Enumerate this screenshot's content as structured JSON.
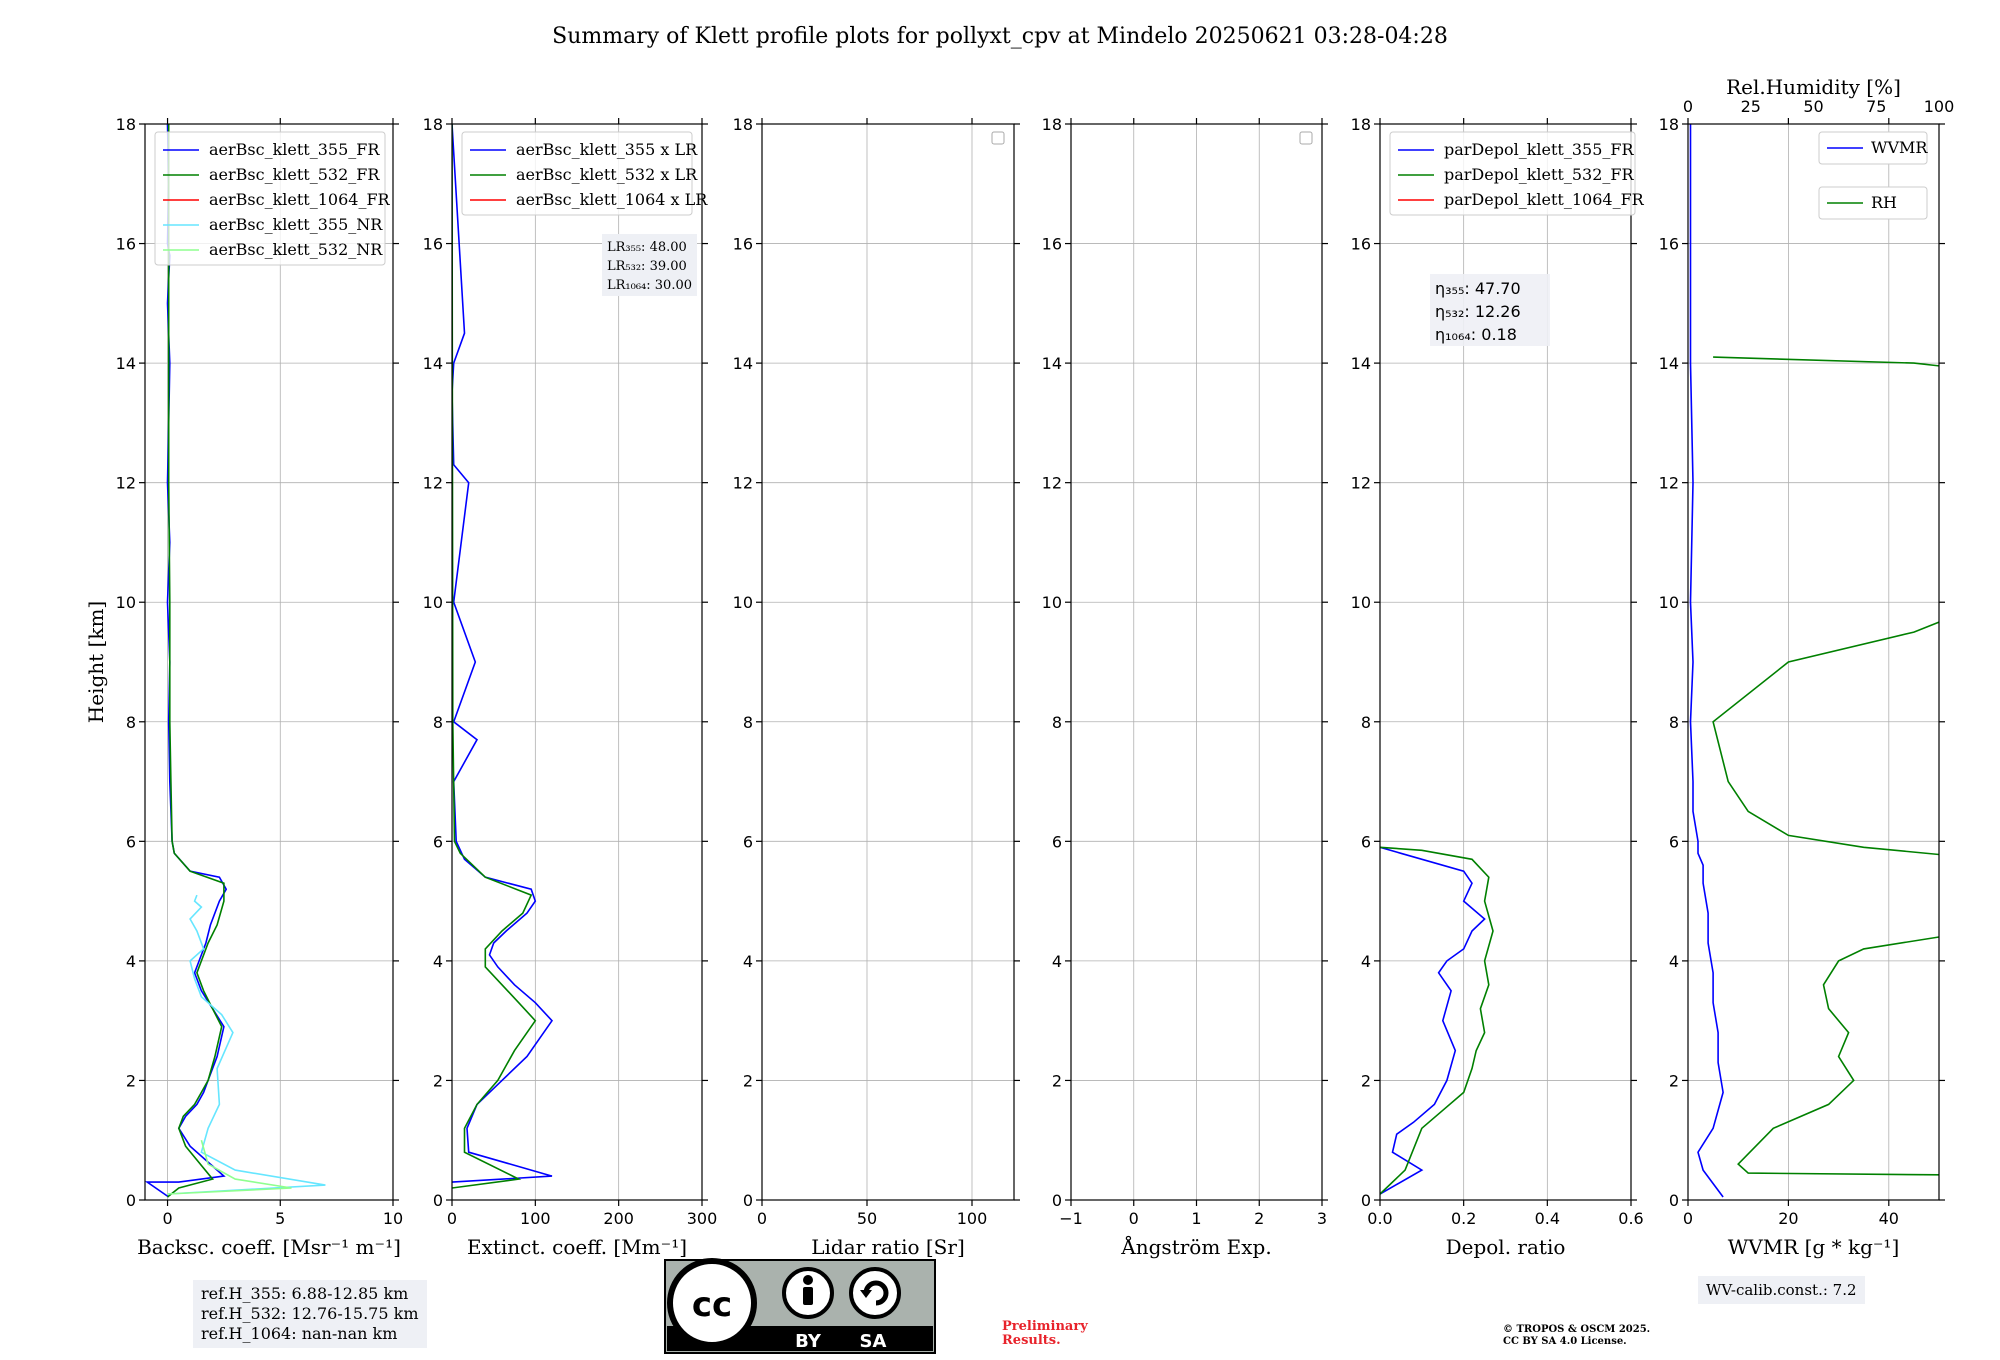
{
  "title": "Summary of Klett profile plots for pollyxt_cpv at Mindelo 20250621 03:28-04:28",
  "chart_data": [
    {
      "type": "line",
      "xlabel": "Backsc. coeff. [Msr⁻¹ m⁻¹]",
      "ylabel": "Height [km]",
      "xlim": [
        -1,
        10
      ],
      "ylim": [
        0,
        18
      ],
      "xticks": [
        0,
        5,
        10
      ],
      "yticks": [
        0,
        2,
        4,
        6,
        8,
        10,
        12,
        14,
        16,
        18
      ],
      "grid": true,
      "legend": "top-left",
      "series": [
        {
          "name": "aerBsc_klett_355_FR",
          "color": "#0000ff",
          "x": [
            0.05,
            -0.9,
            0.5,
            2.5,
            1.0,
            0.5,
            0.8,
            1.3,
            1.6,
            1.8,
            2.2,
            2.5,
            2.0,
            1.5,
            1.2,
            1.4,
            1.7,
            1.9,
            2.3,
            2.6,
            2.3,
            1.0,
            0.3,
            0.2,
            0.1,
            0.05,
            0.1,
            0.0,
            0.1,
            0.0,
            0.05,
            0.1,
            0.0,
            0.1,
            0.0,
            0.05,
            0.0
          ],
          "y": [
            0.05,
            0.3,
            0.3,
            0.4,
            0.9,
            1.2,
            1.4,
            1.6,
            1.8,
            2.0,
            2.4,
            2.9,
            3.2,
            3.5,
            3.8,
            4.0,
            4.3,
            4.6,
            5.0,
            5.2,
            5.4,
            5.5,
            5.8,
            6.0,
            7.0,
            8.0,
            9.0,
            10.0,
            11.0,
            12.0,
            13.0,
            14.0,
            15.0,
            15.8,
            16.0,
            17.0,
            18.0
          ]
        },
        {
          "name": "aerBsc_klett_532_FR",
          "color": "#008000",
          "x": [
            0.0,
            0.5,
            2.0,
            0.8,
            0.5,
            0.7,
            1.2,
            1.5,
            1.8,
            2.1,
            2.4,
            2.0,
            1.6,
            1.3,
            1.5,
            1.8,
            2.2,
            2.5,
            2.5,
            1.0,
            0.3,
            0.2,
            0.15,
            0.1,
            0.1,
            0.05,
            0.05,
            0.05,
            0.05,
            0.05
          ],
          "y": [
            0.05,
            0.2,
            0.35,
            0.9,
            1.2,
            1.4,
            1.6,
            1.8,
            2.0,
            2.4,
            2.9,
            3.2,
            3.5,
            3.8,
            4.0,
            4.3,
            4.6,
            5.0,
            5.3,
            5.5,
            5.8,
            6.0,
            7.0,
            8.0,
            10.0,
            12.0,
            14.0,
            15.0,
            16.5,
            18.0
          ]
        },
        {
          "name": "aerBsc_klett_1064_FR",
          "color": "#ff0000",
          "x": [],
          "y": []
        },
        {
          "name": "aerBsc_klett_355_NR",
          "color": "#66e6ff",
          "x": [
            0.0,
            7.0,
            3.0,
            1.5,
            1.8,
            2.3,
            2.2,
            2.9,
            2.4,
            1.5,
            1.2,
            1.0,
            1.6,
            1.3,
            1.0,
            1.5,
            1.2,
            1.3
          ],
          "y": [
            0.1,
            0.25,
            0.5,
            0.8,
            1.2,
            1.6,
            2.2,
            2.8,
            3.1,
            3.4,
            3.7,
            4.0,
            4.2,
            4.5,
            4.7,
            4.9,
            5.0,
            5.1
          ]
        },
        {
          "name": "aerBsc_klett_532_NR",
          "color": "#8fff8f",
          "x": [
            0.0,
            5.5,
            3.0,
            1.8,
            1.5
          ],
          "y": [
            0.1,
            0.2,
            0.35,
            0.6,
            1.0
          ]
        }
      ],
      "annotation_lines": [
        "ref.H_355: 6.88-12.85 km",
        "ref.H_532: 12.76-15.75 km",
        "ref.H_1064: nan-nan km"
      ]
    },
    {
      "type": "line",
      "xlabel": "Extinct. coeff. [Mm⁻¹]",
      "xlim": [
        0,
        300
      ],
      "ylim": [
        0,
        18
      ],
      "xticks": [
        0,
        100,
        200,
        300
      ],
      "yticks": [
        0,
        2,
        4,
        6,
        8,
        10,
        12,
        14,
        16,
        18
      ],
      "grid": true,
      "legend": "top-left",
      "series": [
        {
          "name": "aerBsc_klett_355 x LR",
          "color": "#0000ff",
          "x": [
            0,
            120,
            20,
            18,
            30,
            60,
            90,
            110,
            120,
            100,
            75,
            55,
            45,
            50,
            65,
            90,
            100,
            95,
            40,
            15,
            5,
            2,
            30,
            2,
            28,
            2,
            20,
            2,
            0,
            2,
            15,
            0
          ],
          "y": [
            0.3,
            0.4,
            0.8,
            1.2,
            1.6,
            2.0,
            2.4,
            2.8,
            3.0,
            3.3,
            3.6,
            3.9,
            4.1,
            4.3,
            4.5,
            4.8,
            5.0,
            5.2,
            5.4,
            5.7,
            6.0,
            7.0,
            7.7,
            8.0,
            9.0,
            10.0,
            12.0,
            12.3,
            13.5,
            14.0,
            14.5,
            18.0
          ]
        },
        {
          "name": "aerBsc_klett_532 x LR",
          "color": "#008000",
          "x": [
            0,
            80,
            15,
            15,
            30,
            55,
            75,
            100,
            80,
            60,
            40,
            40,
            60,
            85,
            95,
            40,
            10,
            3,
            1,
            0
          ],
          "y": [
            0.2,
            0.35,
            0.8,
            1.2,
            1.6,
            2.0,
            2.5,
            3.0,
            3.3,
            3.6,
            3.9,
            4.2,
            4.5,
            4.8,
            5.1,
            5.4,
            5.8,
            6.0,
            8.0,
            18.0
          ]
        },
        {
          "name": "aerBsc_klett_1064 x LR",
          "color": "#ff0000",
          "x": [],
          "y": []
        }
      ],
      "annotation_lines": [
        "LR₃₅₅: 48.00",
        "LR₅₃₂: 39.00",
        "LR₁₀₆₄: 30.00"
      ]
    },
    {
      "type": "line",
      "xlabel": "Lidar ratio [Sr]",
      "xlim": [
        0,
        120
      ],
      "ylim": [
        0,
        18
      ],
      "xticks": [
        0,
        50,
        100
      ],
      "yticks": [
        0,
        2,
        4,
        6,
        8,
        10,
        12,
        14,
        16,
        18
      ],
      "grid": true,
      "legend": "top-right",
      "series": []
    },
    {
      "type": "line",
      "xlabel": "Ångström Exp.",
      "xlim": [
        -1,
        3
      ],
      "ylim": [
        0,
        18
      ],
      "xticks": [
        -1,
        0,
        1,
        2,
        3
      ],
      "yticks": [
        0,
        2,
        4,
        6,
        8,
        10,
        12,
        14,
        16,
        18
      ],
      "grid": true,
      "legend": "top-right",
      "series": []
    },
    {
      "type": "line",
      "xlabel": "Depol. ratio",
      "xlim": [
        0,
        0.6
      ],
      "ylim": [
        0,
        18
      ],
      "xticks": [
        0.0,
        0.2,
        0.4,
        0.6
      ],
      "yticks": [
        0,
        2,
        4,
        6,
        8,
        10,
        12,
        14,
        16,
        18
      ],
      "grid": true,
      "legend": "top-left",
      "series": [
        {
          "name": "parDepol_klett_355_FR",
          "color": "#0000ff",
          "x": [
            0.0,
            0.1,
            0.03,
            0.04,
            0.08,
            0.13,
            0.16,
            0.18,
            0.15,
            0.17,
            0.14,
            0.16,
            0.2,
            0.22,
            0.25,
            0.2,
            0.22,
            0.2,
            0.05,
            0.0
          ],
          "y": [
            0.1,
            0.5,
            0.8,
            1.1,
            1.3,
            1.6,
            2.0,
            2.5,
            3.0,
            3.5,
            3.8,
            4.0,
            4.2,
            4.5,
            4.7,
            5.0,
            5.3,
            5.5,
            5.8,
            5.9
          ]
        },
        {
          "name": "parDepol_klett_532_FR",
          "color": "#008000",
          "x": [
            0.0,
            0.06,
            0.1,
            0.15,
            0.2,
            0.22,
            0.23,
            0.25,
            0.24,
            0.26,
            0.25,
            0.27,
            0.25,
            0.26,
            0.22,
            0.1,
            0.0
          ],
          "y": [
            0.1,
            0.5,
            1.2,
            1.5,
            1.8,
            2.2,
            2.5,
            2.8,
            3.2,
            3.6,
            4.0,
            4.5,
            5.0,
            5.4,
            5.7,
            5.85,
            5.9
          ]
        },
        {
          "name": "parDepol_klett_1064_FR",
          "color": "#ff0000",
          "x": [],
          "y": []
        }
      ],
      "annotation_lines": [
        "η₃₅₅: 47.70",
        "η₅₃₂: 12.26",
        "η₁₀₆₄: 0.18"
      ]
    },
    {
      "type": "line",
      "xlabel": "WVMR [g * kg⁻¹]",
      "x2label": "Rel.Humidity [%]",
      "xlim": [
        0,
        50
      ],
      "x2lim": [
        0,
        100
      ],
      "ylim": [
        0,
        18
      ],
      "xticks": [
        0,
        20,
        40
      ],
      "x2ticks": [
        0,
        25,
        50,
        75,
        100
      ],
      "yticks": [
        0,
        2,
        4,
        6,
        8,
        10,
        12,
        14,
        16,
        18
      ],
      "grid": true,
      "legend": "top-right",
      "series": [
        {
          "name": "WVMR",
          "color": "#0000ff",
          "x": [
            7,
            3,
            2,
            5,
            7,
            6,
            6,
            5,
            5,
            4,
            4,
            3,
            3,
            2,
            2,
            1,
            1,
            0.5,
            1,
            0.5,
            1,
            0.5,
            0.5,
            0.5
          ],
          "y": [
            0.05,
            0.5,
            0.8,
            1.2,
            1.8,
            2.3,
            2.8,
            3.3,
            3.8,
            4.3,
            4.8,
            5.3,
            5.6,
            5.8,
            6.0,
            6.5,
            7.0,
            8.0,
            9.0,
            10.0,
            12.0,
            14.0,
            16.0,
            18.0
          ]
        },
        {
          "name": "RH",
          "color": "#008000",
          "x": [
            95,
            78,
            12,
            10,
            17,
            28,
            33,
            30,
            32,
            28,
            27,
            30,
            35,
            50,
            65,
            80,
            98,
            85,
            60,
            35,
            20,
            12,
            8,
            5,
            20,
            45,
            60,
            80,
            99,
            100,
            98,
            75,
            99,
            45,
            5
          ],
          "y": [
            0.05,
            0.4,
            0.45,
            0.6,
            1.2,
            1.6,
            2.0,
            2.4,
            2.8,
            3.2,
            3.6,
            4.0,
            4.2,
            4.4,
            4.6,
            4.8,
            5.1,
            5.4,
            5.7,
            5.9,
            6.1,
            6.5,
            7.0,
            8.0,
            9.0,
            9.5,
            10.0,
            10.5,
            11.0,
            11.5,
            12.0,
            12.5,
            13.5,
            14.0,
            14.1
          ]
        }
      ],
      "annotation_lines": [
        "WV-calib.const.: 7.2"
      ]
    }
  ],
  "license": {
    "cc": "cc",
    "by": "BY",
    "sa": "SA"
  },
  "preliminary_lines": [
    "Preliminary",
    "Results."
  ],
  "copyright_lines": [
    "© TROPOS & OSCM 2025.",
    "CC BY SA 4.0 License."
  ]
}
